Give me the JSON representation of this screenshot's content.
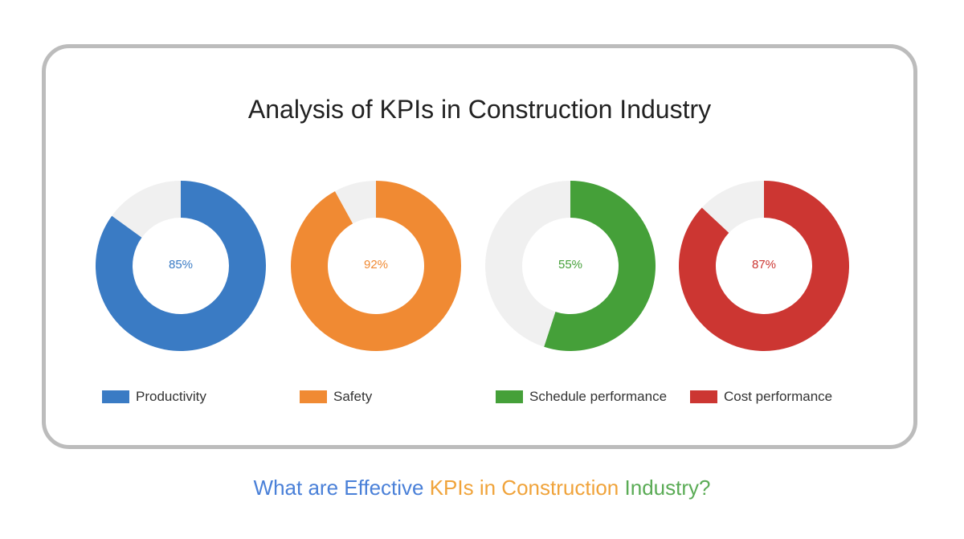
{
  "chart_data": {
    "type": "donut",
    "title": "Analysis of KPIs in Construction Industry",
    "series": [
      {
        "name": "Productivity",
        "value": 85,
        "label": "85%",
        "color": "#3a7bc4"
      },
      {
        "name": "Safety",
        "value": 92,
        "label": "92%",
        "color": "#f08a33"
      },
      {
        "name": "Schedule performance",
        "value": 55,
        "label": "55%",
        "color": "#45a039"
      },
      {
        "name": "Cost performance",
        "value": 87,
        "label": "87%",
        "color": "#cc3632"
      }
    ],
    "max": 100,
    "remainder_color": "#f0f0f0",
    "legend_position": "bottom"
  },
  "caption": {
    "part1": "What are Effective ",
    "part1_color": "#4a80d8",
    "part2": "KPIs in Construction",
    "part2_color": "#f0a33a",
    "part3": " Industry?",
    "part3_color": "#5aab55"
  }
}
